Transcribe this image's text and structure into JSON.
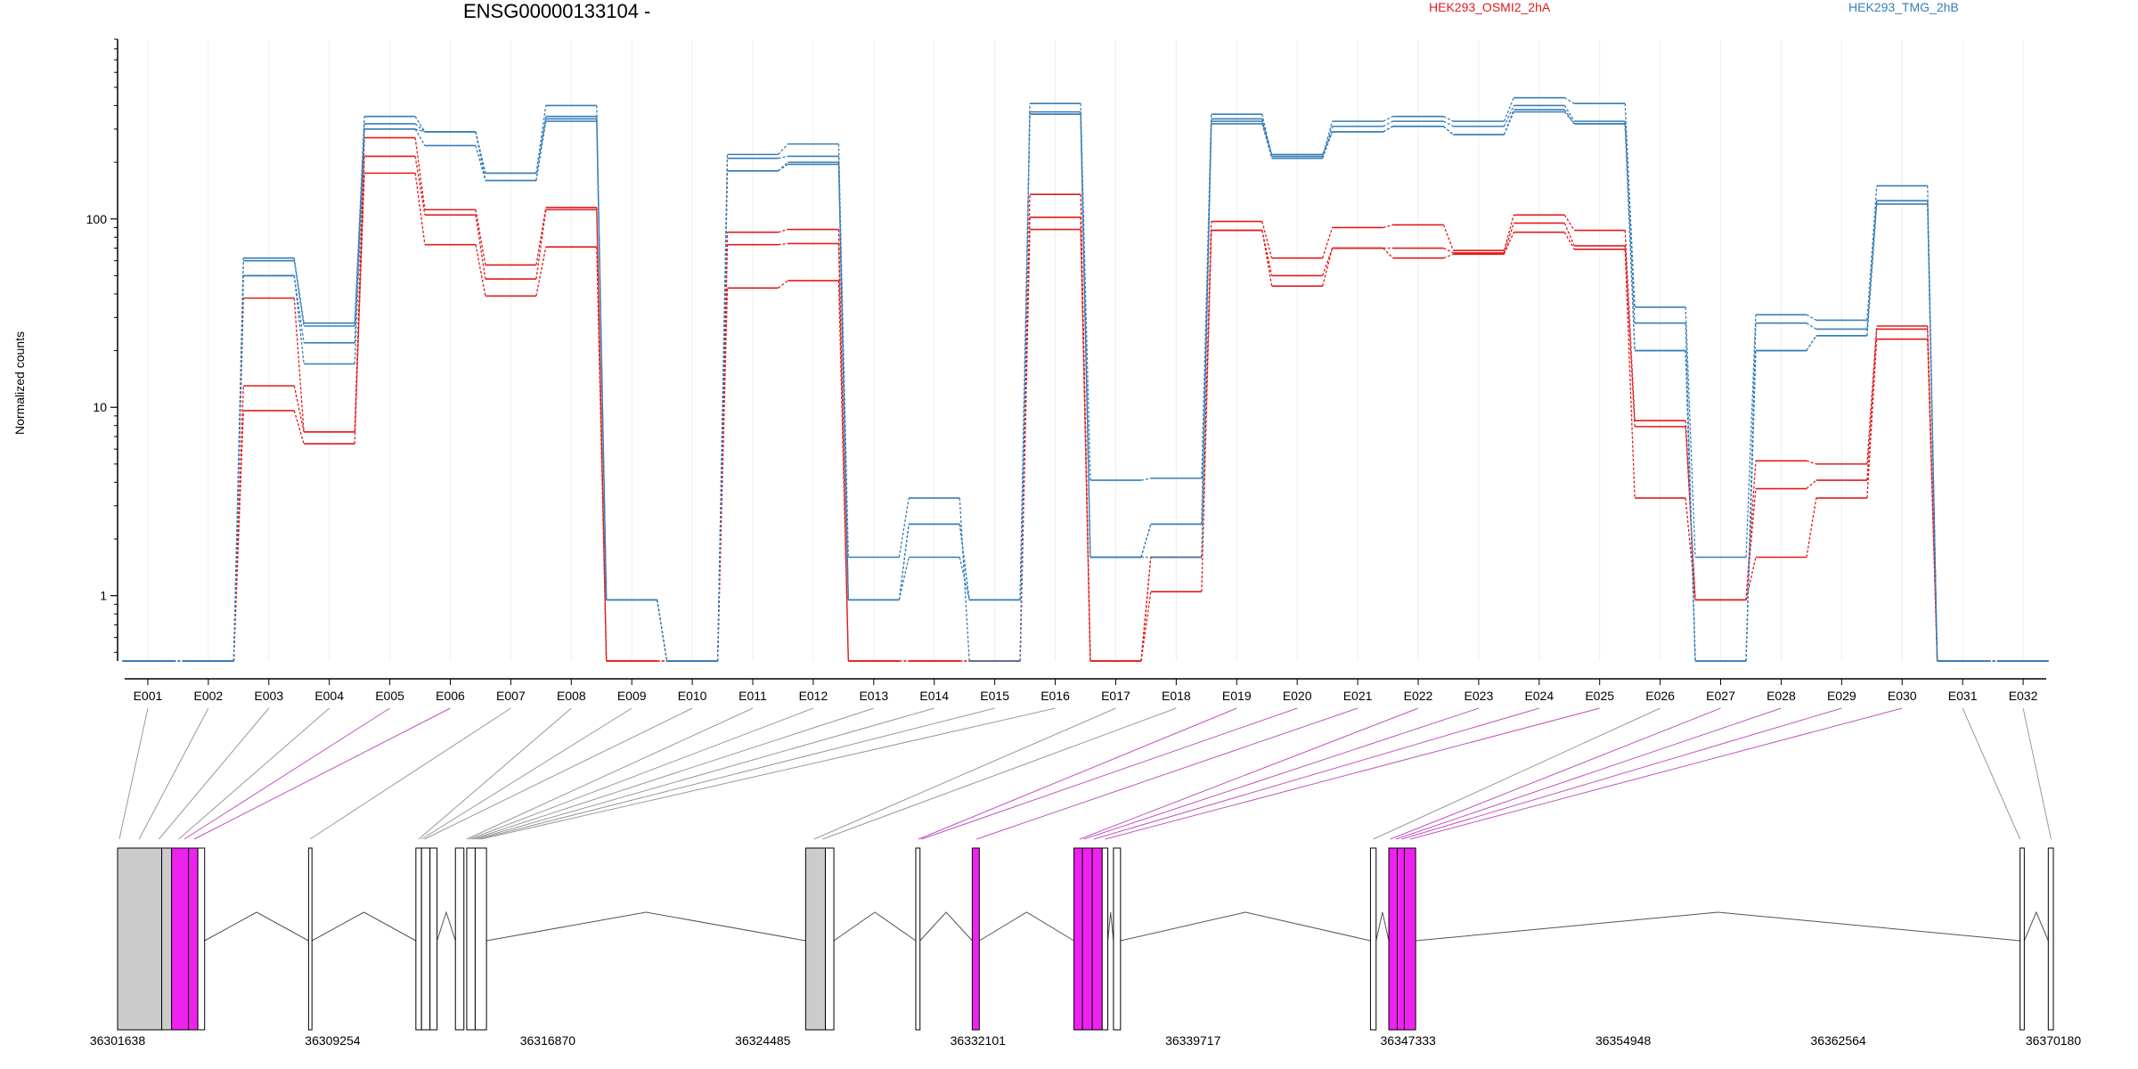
{
  "chart_data": {
    "type": "line",
    "title": "ENSG00000133104 -",
    "xlabel": "",
    "ylabel": "Normalized counts",
    "y_scale": "log",
    "ylim": [
      0.45,
      900
    ],
    "yticks": [
      1,
      10,
      100
    ],
    "ytick_labels": [
      "1",
      "10",
      "100"
    ],
    "legend_placement": "top",
    "grid": "vertical exon gridlines",
    "categories": [
      "E001",
      "E002",
      "E003",
      "E004",
      "E005",
      "E006",
      "E007",
      "E008",
      "E009",
      "E010",
      "E011",
      "E012",
      "E013",
      "E014",
      "E015",
      "E016",
      "E017",
      "E018",
      "E019",
      "E020",
      "E021",
      "E022",
      "E023",
      "E024",
      "E025",
      "E026",
      "E027",
      "E028",
      "E029",
      "E030",
      "E031",
      "E032"
    ],
    "series": [
      {
        "name": "HEK293_OSMI2_2hA",
        "group": "HEK293_OSMI2_2hA",
        "color": "#e31a1c",
        "values": [
          0.45,
          0.45,
          13,
          7.4,
          270,
          112,
          57,
          115,
          0.45,
          0.45,
          85,
          88,
          0.45,
          0.45,
          0.45,
          135,
          0.45,
          1.6,
          97,
          62,
          90,
          93,
          68,
          105,
          87,
          8.5,
          0.95,
          5.2,
          5.0,
          27,
          0.45,
          0.45
        ]
      },
      {
        "name": "",
        "group": "HEK293_OSMI2_2hA",
        "color": "#e31a1c",
        "values": [
          0.45,
          0.45,
          9.6,
          6.4,
          215,
          105,
          48,
          112,
          0.45,
          0.45,
          73,
          74,
          0.45,
          0.45,
          0.45,
          102,
          0.45,
          1.05,
          87,
          50,
          70,
          70,
          66,
          95,
          72,
          7.9,
          0.95,
          3.7,
          4.1,
          26,
          0.45,
          0.45
        ]
      },
      {
        "name": "",
        "group": "HEK293_OSMI2_2hA",
        "color": "#e31a1c",
        "values": [
          0.45,
          0.45,
          38,
          7.4,
          175,
          73,
          39,
          71,
          0.45,
          0.45,
          43,
          47,
          0.45,
          0.45,
          0.45,
          88,
          0.45,
          1.6,
          87,
          44,
          70,
          62,
          65,
          85,
          69,
          3.3,
          0.95,
          1.6,
          3.3,
          23,
          0.45,
          0.45
        ]
      },
      {
        "name": "HEK293_TMG_2hB",
        "group": "HEK293_TMG_2hB",
        "color": "#377eb8",
        "values": [
          0.45,
          0.45,
          62,
          28,
          350,
          290,
          175,
          400,
          0.95,
          0.45,
          220,
          250,
          1.6,
          3.3,
          0.45,
          410,
          4.1,
          4.2,
          360,
          215,
          330,
          350,
          330,
          440,
          410,
          34,
          1.6,
          31,
          29,
          150,
          0.45,
          0.45
        ]
      },
      {
        "name": "",
        "group": "HEK293_TMG_2hB",
        "color": "#377eb8",
        "values": [
          0.45,
          0.45,
          60,
          27,
          320,
          290,
          160,
          350,
          0.95,
          0.45,
          210,
          215,
          0.95,
          2.4,
          0.95,
          370,
          1.6,
          2.4,
          340,
          210,
          310,
          330,
          310,
          400,
          330,
          28,
          0.45,
          28,
          26,
          125,
          0.45,
          0.45
        ]
      },
      {
        "name": "",
        "group": "HEK293_TMG_2hB",
        "color": "#377eb8",
        "values": [
          0.45,
          0.45,
          50,
          22,
          300,
          245,
          160,
          330,
          0.95,
          0.45,
          180,
          200,
          0.95,
          1.6,
          0.95,
          360,
          1.6,
          1.6,
          320,
          210,
          290,
          310,
          280,
          370,
          320,
          20,
          0.45,
          20,
          24,
          120,
          0.45,
          0.45
        ]
      },
      {
        "name": "",
        "group": "HEK293_TMG_2hB",
        "color": "#377eb8",
        "values": [
          0.45,
          0.45,
          50,
          17,
          300,
          290,
          175,
          340,
          0.95,
          0.45,
          180,
          195,
          0.95,
          2.4,
          0.95,
          360,
          1.6,
          2.4,
          330,
          220,
          290,
          310,
          280,
          380,
          320,
          20,
          0.45,
          20,
          24,
          125,
          0.45,
          0.45
        ]
      }
    ],
    "gene_model": {
      "coordinate_ticks": [
        "36301638",
        "36309254",
        "36316870",
        "36324485",
        "36332101",
        "36339717",
        "36347333",
        "36354948",
        "36362564",
        "36370180"
      ],
      "coordinate_range": [
        36301638,
        36370180
      ],
      "exons": [
        {
          "id": "E001",
          "start": 36301638,
          "end": 36303200,
          "class": "gray"
        },
        {
          "id": "E002",
          "start": 36303200,
          "end": 36303550,
          "class": "gray"
        },
        {
          "id": "E003",
          "start": 36303550,
          "end": 36304150,
          "class": "magenta"
        },
        {
          "id": "E004",
          "start": 36304150,
          "end": 36304480,
          "class": "magenta"
        },
        {
          "id": "E005",
          "start": 36304480,
          "end": 36304720,
          "class": "white"
        },
        {
          "id": "E006",
          "start": 36308400,
          "end": 36308520,
          "class": "white"
        },
        {
          "id": "E007",
          "start": 36312200,
          "end": 36312400,
          "class": "white"
        },
        {
          "id": "E008",
          "start": 36312400,
          "end": 36312700,
          "class": "white"
        },
        {
          "id": "E009",
          "start": 36312700,
          "end": 36312950,
          "class": "white"
        },
        {
          "id": "E010",
          "start": 36313600,
          "end": 36313900,
          "class": "white"
        },
        {
          "id": "E011",
          "start": 36314000,
          "end": 36314300,
          "class": "white"
        },
        {
          "id": "E012",
          "start": 36314300,
          "end": 36314700,
          "class": "white"
        },
        {
          "id": "E013",
          "start": 36326000,
          "end": 36326700,
          "class": "gray"
        },
        {
          "id": "E014",
          "start": 36326700,
          "end": 36327000,
          "class": "white"
        },
        {
          "id": "E015",
          "start": 36329900,
          "end": 36330050,
          "class": "white"
        },
        {
          "id": "E016",
          "start": 36331900,
          "end": 36332150,
          "class": "magenta"
        },
        {
          "id": "E017",
          "start": 36335500,
          "end": 36335800,
          "class": "magenta"
        },
        {
          "id": "E018",
          "start": 36335800,
          "end": 36336150,
          "class": "magenta"
        },
        {
          "id": "E019",
          "start": 36336150,
          "end": 36336500,
          "class": "magenta"
        },
        {
          "id": "E020",
          "start": 36336500,
          "end": 36336700,
          "class": "white"
        },
        {
          "id": "E021",
          "start": 36336900,
          "end": 36337150,
          "class": "white"
        },
        {
          "id": "E022",
          "start": 36346000,
          "end": 36346200,
          "class": "white"
        },
        {
          "id": "E023",
          "start": 36346650,
          "end": 36346950,
          "class": "magenta"
        },
        {
          "id": "E024",
          "start": 36346950,
          "end": 36347200,
          "class": "magenta"
        },
        {
          "id": "E025",
          "start": 36347200,
          "end": 36347600,
          "class": "magenta"
        },
        {
          "id": "E026",
          "start": 36369000,
          "end": 36369150,
          "class": "white"
        },
        {
          "id": "E027",
          "start": 36370000,
          "end": 36370180,
          "class": "white"
        }
      ],
      "exon_links": [
        {
          "label": "E001",
          "at": 36301700,
          "class": "gray"
        },
        {
          "label": "E002",
          "at": 36302400,
          "class": "gray"
        },
        {
          "label": "E003",
          "at": 36303100,
          "class": "gray"
        },
        {
          "label": "E004",
          "at": 36303800,
          "class": "gray"
        },
        {
          "label": "E005",
          "at": 36304000,
          "class": "magenta"
        },
        {
          "label": "E006",
          "at": 36304350,
          "class": "magenta"
        },
        {
          "label": "E007",
          "at": 36308450,
          "class": "gray"
        },
        {
          "label": "E008",
          "at": 36312300,
          "class": "gray"
        },
        {
          "label": "E009",
          "at": 36312400,
          "class": "gray"
        },
        {
          "label": "E010",
          "at": 36312500,
          "class": "gray"
        },
        {
          "label": "E011",
          "at": 36314000,
          "class": "gray"
        },
        {
          "label": "E012",
          "at": 36314100,
          "class": "gray"
        },
        {
          "label": "E013",
          "at": 36314200,
          "class": "gray"
        },
        {
          "label": "E014",
          "at": 36314300,
          "class": "gray"
        },
        {
          "label": "E015",
          "at": 36314400,
          "class": "gray"
        },
        {
          "label": "E016",
          "at": 36314500,
          "class": "gray"
        },
        {
          "label": "E017",
          "at": 36326300,
          "class": "gray"
        },
        {
          "label": "E018",
          "at": 36326600,
          "class": "gray"
        },
        {
          "label": "E019",
          "at": 36330000,
          "class": "magenta"
        },
        {
          "label": "E020",
          "at": 36330100,
          "class": "magenta"
        },
        {
          "label": "E021",
          "at": 36332050,
          "class": "magenta"
        },
        {
          "label": "E022",
          "at": 36335700,
          "class": "magenta"
        },
        {
          "label": "E023",
          "at": 36335850,
          "class": "magenta"
        },
        {
          "label": "E024",
          "at": 36336200,
          "class": "magenta"
        },
        {
          "label": "E025",
          "at": 36336600,
          "class": "magenta"
        },
        {
          "label": "E026",
          "at": 36346100,
          "class": "gray"
        },
        {
          "label": "E027",
          "at": 36346700,
          "class": "magenta"
        },
        {
          "label": "E028",
          "at": 36346900,
          "class": "magenta"
        },
        {
          "label": "E029",
          "at": 36347100,
          "class": "magenta"
        },
        {
          "label": "E030",
          "at": 36347400,
          "class": "magenta"
        },
        {
          "label": "E031",
          "at": 36369000,
          "class": "gray"
        },
        {
          "label": "E032",
          "at": 36370100,
          "class": "gray"
        }
      ],
      "introns": [
        [
          36304720,
          36308400
        ],
        [
          36308520,
          36312200
        ],
        [
          36312950,
          36313600
        ],
        [
          36314700,
          36326000
        ],
        [
          36327000,
          36329900
        ],
        [
          36330050,
          36331900
        ],
        [
          36332150,
          36335500
        ],
        [
          36336700,
          36336900
        ],
        [
          36337150,
          36346000
        ],
        [
          36346200,
          36346650
        ],
        [
          36347600,
          36369000
        ],
        [
          36369150,
          36370000
        ]
      ]
    }
  },
  "colors": {
    "series_a": "#e31a1c",
    "series_b": "#377eb8",
    "exon_highlight": "#ee22ee",
    "exon_gray": "#cccccc",
    "link_gray": "#999999",
    "link_magenta": "#c055c0",
    "gridline": "#eeeeee",
    "intron": "#555555"
  }
}
